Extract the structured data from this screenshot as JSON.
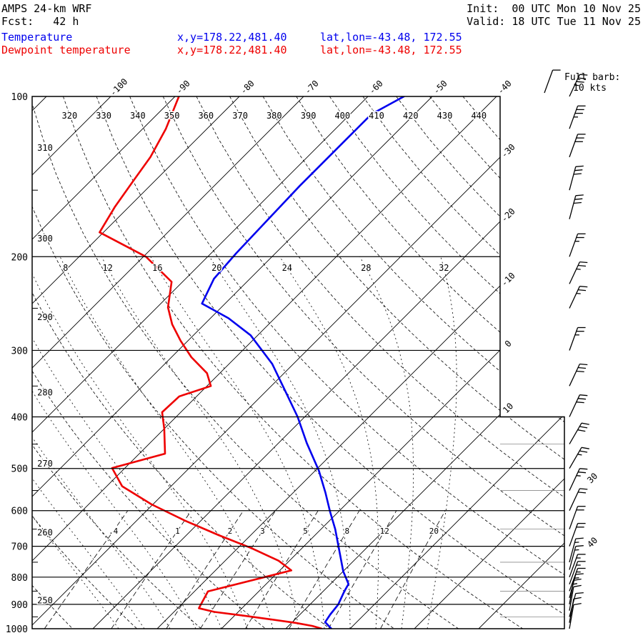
{
  "header": {
    "model": "AMPS 24-km WRF",
    "fcst": "Fcst:   42 h",
    "init": "Init:  00 UTC Mon 10 Nov 25",
    "valid": "Valid: 18 UTC Tue 11 Nov 25",
    "temperature_label": "Temperature",
    "dewpoint_label": "Dewpoint temperature",
    "temperature_xy": "x,y=178.22,481.40",
    "temperature_latlon": "lat,lon=-43.48, 172.55",
    "dewpoint_xy": "x,y=178.22,481.40",
    "dewpoint_latlon": "lat,lon=-43.48, 172.55"
  },
  "legend": {
    "full_barb_line1": "Full barb:",
    "full_barb_line2": "10 kts"
  },
  "colors": {
    "temperature": "#0000ee",
    "dewpoint": "#ee0000",
    "axis": "#000000",
    "minor_grid": "#888888"
  },
  "chart_data": {
    "type": "skewt_log_p_sounding",
    "pressure_range_hpa": [
      100,
      1000
    ],
    "pressure_axis_hpa": [
      100,
      200,
      300,
      400,
      500,
      600,
      700,
      800,
      900,
      1000
    ],
    "isotherm_step_c": 10,
    "isotherm_labels_top_c": [
      -100,
      -90,
      -80,
      -70,
      -60,
      -50,
      -40
    ],
    "isotherm_labels_right_c": [
      -30,
      -20,
      -10,
      0,
      10
    ],
    "isotherm_labels_lower_right_c": [
      30,
      40
    ],
    "dry_adiabats_k": [
      250,
      260,
      270,
      280,
      290,
      300,
      310,
      320,
      330,
      340,
      350,
      360,
      370,
      380,
      390,
      400,
      410,
      420,
      430,
      440
    ],
    "moist_adiabats_c": [
      -16,
      -12,
      -8,
      -4,
      0,
      4,
      8,
      12,
      16,
      20,
      24,
      28,
      32
    ],
    "moist_adiabat_labels_c": [
      8,
      12,
      16,
      20,
      24,
      28,
      32
    ],
    "mixing_ratio_lines_gkg": [
      0.4,
      1,
      2,
      3,
      5,
      8,
      12,
      20
    ],
    "mixing_ratio_labels": [
      ".4",
      "1",
      "2",
      "3",
      "5",
      "8",
      "12",
      "20"
    ],
    "temperature_profile_p_c": [
      [
        1000,
        17.1
      ],
      [
        972,
        15.1
      ],
      [
        940,
        14.7
      ],
      [
        901,
        14.4
      ],
      [
        851,
        13.3
      ],
      [
        824,
        12.8
      ],
      [
        780,
        10.0
      ],
      [
        712,
        6.1
      ],
      [
        650,
        2.2
      ],
      [
        603,
        -1.3
      ],
      [
        555,
        -5.0
      ],
      [
        505,
        -9.4
      ],
      [
        448,
        -15.6
      ],
      [
        400,
        -21.1
      ],
      [
        360,
        -26.7
      ],
      [
        318,
        -33.3
      ],
      [
        281,
        -41.1
      ],
      [
        261,
        -47.2
      ],
      [
        245,
        -53.6
      ],
      [
        220,
        -55.6
      ],
      [
        197,
        -56.1
      ],
      [
        171,
        -56.4
      ],
      [
        147,
        -56.7
      ],
      [
        125,
        -56.7
      ],
      [
        108,
        -56.7
      ],
      [
        100,
        -54.4
      ]
    ],
    "dewpoint_profile_p_c": [
      [
        1000,
        15.6
      ],
      [
        988,
        13.7
      ],
      [
        975,
        10.6
      ],
      [
        960,
        6.1
      ],
      [
        945,
        1.4
      ],
      [
        930,
        -3.7
      ],
      [
        915,
        -6.7
      ],
      [
        851,
        -7.9
      ],
      [
        777,
        1.8
      ],
      [
        745,
        -1.7
      ],
      [
        706,
        -7.8
      ],
      [
        667,
        -15.0
      ],
      [
        626,
        -22.6
      ],
      [
        584,
        -30.2
      ],
      [
        540,
        -37.6
      ],
      [
        499,
        -42.0
      ],
      [
        469,
        -36.0
      ],
      [
        421,
        -40.0
      ],
      [
        392,
        -42.9
      ],
      [
        366,
        -42.7
      ],
      [
        350,
        -39.4
      ],
      [
        331,
        -42.0
      ],
      [
        309,
        -46.9
      ],
      [
        288,
        -51.1
      ],
      [
        268,
        -55.0
      ],
      [
        249,
        -58.3
      ],
      [
        223,
        -61.7
      ],
      [
        200,
        -69.6
      ],
      [
        180,
        -80.6
      ],
      [
        161,
        -82.2
      ],
      [
        145,
        -83.3
      ],
      [
        130,
        -84.4
      ],
      [
        115,
        -86.4
      ],
      [
        100,
        -89.4
      ]
    ],
    "wind_barbs_p_dir_spd": [
      [
        100,
        25,
        35
      ],
      [
        115,
        20,
        35
      ],
      [
        130,
        20,
        30
      ],
      [
        150,
        15,
        30
      ],
      [
        170,
        15,
        30
      ],
      [
        200,
        20,
        25
      ],
      [
        225,
        25,
        25
      ],
      [
        250,
        25,
        25
      ],
      [
        300,
        20,
        25
      ],
      [
        350,
        25,
        30
      ],
      [
        400,
        25,
        30
      ],
      [
        450,
        30,
        30
      ],
      [
        500,
        30,
        25
      ],
      [
        550,
        25,
        25
      ],
      [
        600,
        25,
        20
      ],
      [
        650,
        20,
        20
      ],
      [
        700,
        20,
        20
      ],
      [
        750,
        15,
        15
      ],
      [
        775,
        15,
        15
      ],
      [
        800,
        20,
        15
      ],
      [
        825,
        20,
        15
      ],
      [
        850,
        20,
        15
      ],
      [
        875,
        15,
        15
      ],
      [
        900,
        10,
        15
      ],
      [
        925,
        10,
        10
      ],
      [
        950,
        15,
        10
      ],
      [
        975,
        10,
        10
      ],
      [
        1000,
        10,
        10
      ]
    ]
  }
}
